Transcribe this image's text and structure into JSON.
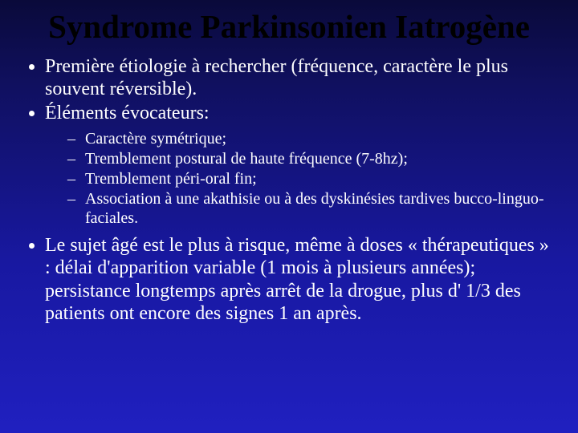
{
  "background": {
    "gradient_top": "#0a0a3a",
    "gradient_bottom": "#2020c0"
  },
  "title": {
    "text": "Syndrome Parkinsonien Iatrogène",
    "color": "#000000",
    "fontsize": 41,
    "font_weight": "bold",
    "font_family": "Times New Roman"
  },
  "body": {
    "color": "#ffffff",
    "fontsize_level1": 24,
    "fontsize_level2": 20
  },
  "bullets": {
    "b1": "Première étiologie à rechercher (fréquence, caractère le plus souvent réversible).",
    "b2": "Éléments évocateurs:",
    "b2_sub": {
      "s1": "Caractère symétrique;",
      "s2": "Tremblement postural de haute fréquence (7-8hz);",
      "s3": "Tremblement péri-oral fin;",
      "s4": "Association à une akathisie ou à des dyskinésies tardives bucco-linguo-faciales."
    },
    "b3": "Le sujet âgé est le plus à risque, même à doses « thérapeutiques » : délai d'apparition variable (1 mois à plusieurs années); persistance longtemps après arrêt de la drogue, plus d' 1/3 des patients ont encore des signes 1 an après."
  }
}
